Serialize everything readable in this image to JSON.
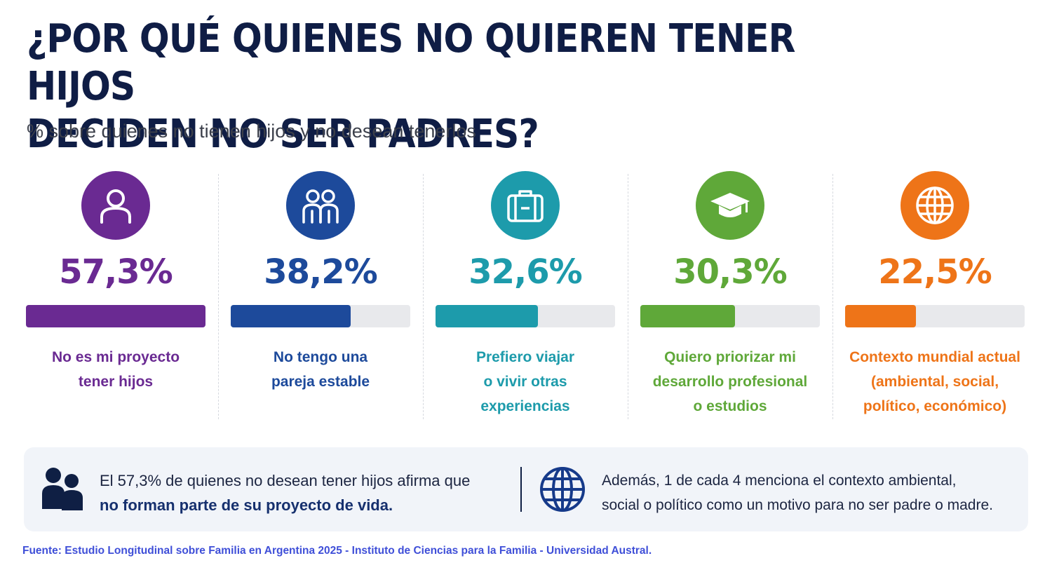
{
  "header": {
    "title_line1": "¿POR QUÉ QUIENES NO QUIEREN TENER HIJOS",
    "title_line2": "DECIDEN NO SER PADRES?",
    "subtitle": "% sobre quienes no tienen hijos y no desean tenerlos"
  },
  "chart_data": {
    "type": "bar",
    "title": "¿POR QUÉ QUIENES NO QUIEREN TENER HIJOS DECIDEN NO SER PADRES?",
    "subtitle": "% sobre quienes no tienen hijos y no desean tenerlos",
    "ylim": [
      0,
      57.3
    ],
    "unit": "%",
    "categories": [
      "No es mi proyecto tener hijos",
      "No tengo una pareja estable",
      "Prefiero viajar o vivir otras experiencias",
      "Quiero priorizar mi desarrollo profesional o estudios",
      "Contexto mundial actual (ambiental, social, político, económico)"
    ],
    "values": [
      57.3,
      38.2,
      32.6,
      30.3,
      22.5
    ],
    "items": [
      {
        "value": 57.3,
        "value_label": "57,3%",
        "color": "#6a2a92",
        "icon": "person-icon",
        "label_lines": [
          "No es mi proyecto",
          "tener hijos"
        ]
      },
      {
        "value": 38.2,
        "value_label": "38,2%",
        "color": "#1d4a9b",
        "icon": "couple-icon",
        "label_lines": [
          "No tengo una",
          "pareja estable"
        ]
      },
      {
        "value": 32.6,
        "value_label": "32,6%",
        "color": "#1d9bab",
        "icon": "suitcase-icon",
        "label_lines": [
          "Prefiero viajar",
          "o vivir otras",
          "experiencias"
        ]
      },
      {
        "value": 30.3,
        "value_label": "30,3%",
        "color": "#5fa839",
        "icon": "graduation-cap-icon",
        "label_lines": [
          "Quiero priorizar mi",
          "desarrollo profesional",
          "o estudios"
        ]
      },
      {
        "value": 22.5,
        "value_label": "22,5%",
        "color": "#ee7418",
        "icon": "globe-icon",
        "label_lines": [
          "Contexto mundial actual",
          "(ambiental, social,",
          "político, económico)"
        ]
      }
    ]
  },
  "summary": {
    "left_text": "El 57,3% de quienes no desean tener hijos afirma que",
    "left_text_strong": "no forman parte de su proyecto de vida.",
    "left_icon": "people-icon",
    "right_icon": "globe-icon",
    "right_line1": "Además, 1 de cada 4 menciona el contexto ambiental,",
    "right_line2": "social o político como un motivo para no ser padre o madre."
  },
  "source": "Fuente: Estudio Longitudinal sobre Familia en Argentina 2025 - Instituto de Ciencias para la Familia - Universidad Austral.",
  "colors": {
    "title": "#0f1d45",
    "bar_track": "#e8e9ec",
    "summary_bg": "#f1f4f9",
    "source": "#3f4fd8"
  }
}
